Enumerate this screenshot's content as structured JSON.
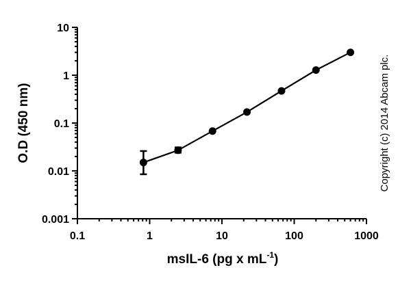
{
  "chart_data": {
    "type": "scatter",
    "xlabel": "msIL-6 (pg x mL",
    "xlabel_superscript": "-1",
    "xlabel_suffix": ")",
    "ylabel": "O.D (450 nm)",
    "x_scale": "log",
    "y_scale": "log",
    "xlim": [
      0.1,
      1000
    ],
    "ylim": [
      0.001,
      10
    ],
    "x_ticks": [
      "0.1",
      "1",
      "10",
      "100",
      "1000"
    ],
    "y_ticks": [
      "0.001",
      "0.01",
      "0.1",
      "1",
      "10"
    ],
    "grid": false,
    "series": [
      {
        "x": [
          0.82,
          2.47,
          7.41,
          22.2,
          66.7,
          200,
          600
        ],
        "y": [
          0.015,
          0.027,
          0.068,
          0.17,
          0.47,
          1.28,
          3.0
        ],
        "y_err_low": [
          0.0085,
          0.024,
          null,
          null,
          null,
          null,
          null
        ],
        "y_err_high": [
          0.026,
          0.031,
          null,
          null,
          null,
          null,
          null
        ]
      }
    ],
    "annotation": "Copyright (c) 2014 Abcam plc."
  }
}
